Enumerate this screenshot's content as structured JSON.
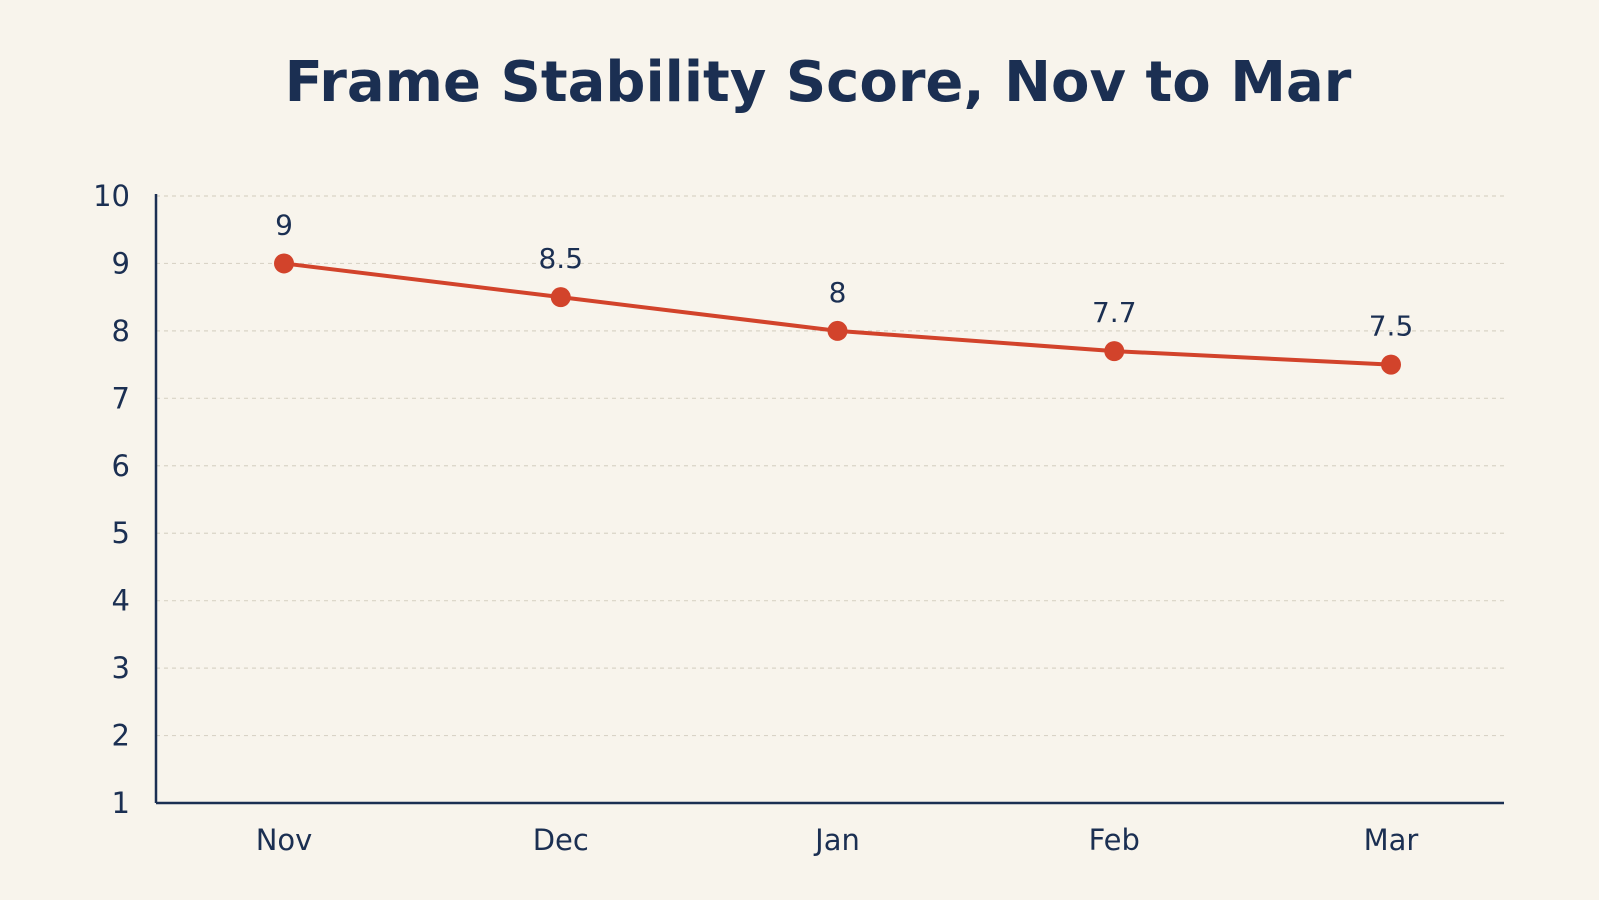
{
  "colors": {
    "background": "#f8f4ec",
    "text": "#1b2f52",
    "axis": "#1b2f52",
    "grid": "#d9d3c6",
    "series": "#d2432b"
  },
  "chart_data": {
    "type": "line",
    "title": "Frame Stability Score, Nov to Mar",
    "xlabel": "",
    "ylabel": "",
    "categories": [
      "Nov",
      "Dec",
      "Jan",
      "Feb",
      "Mar"
    ],
    "series": [
      {
        "values": [
          9,
          8.5,
          8,
          7.7,
          7.5
        ],
        "data_labels": [
          "9",
          "8.5",
          "8",
          "7.7",
          "7.5"
        ]
      }
    ],
    "ylim": [
      1,
      10
    ],
    "yticks": [
      "1",
      "2",
      "3",
      "4",
      "5",
      "6",
      "7",
      "8",
      "9",
      "10"
    ],
    "grid": true,
    "grid_style": "dashed-horizontal",
    "legend": "none"
  }
}
